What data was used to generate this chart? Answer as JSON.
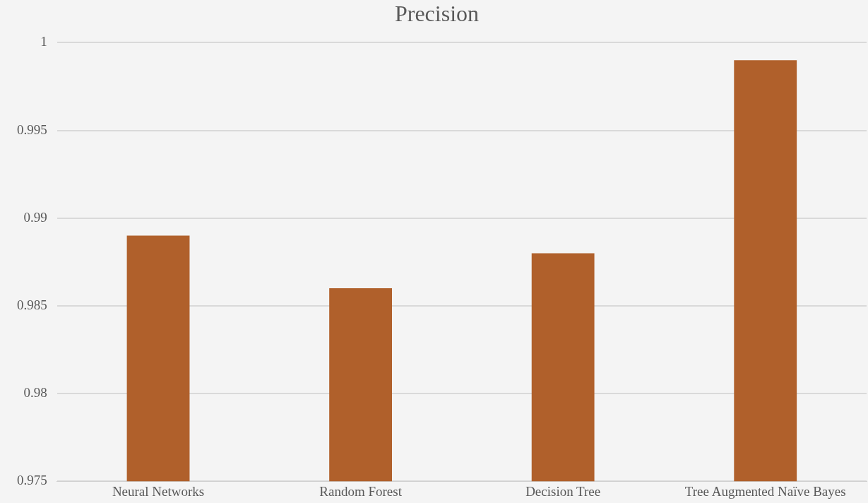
{
  "chart_data": {
    "type": "bar",
    "title": "Precision",
    "categories": [
      "Neural Networks",
      "Random Forest",
      "Decision Tree",
      "Tree Augmented Naïve Bayes"
    ],
    "values": [
      0.989,
      0.986,
      0.988,
      0.999
    ],
    "color": "#b0602b",
    "ylim": [
      0.975,
      1
    ],
    "yticks": [
      0.975,
      0.98,
      0.985,
      0.99,
      0.995,
      1
    ],
    "grid": "y",
    "legend": false
  }
}
